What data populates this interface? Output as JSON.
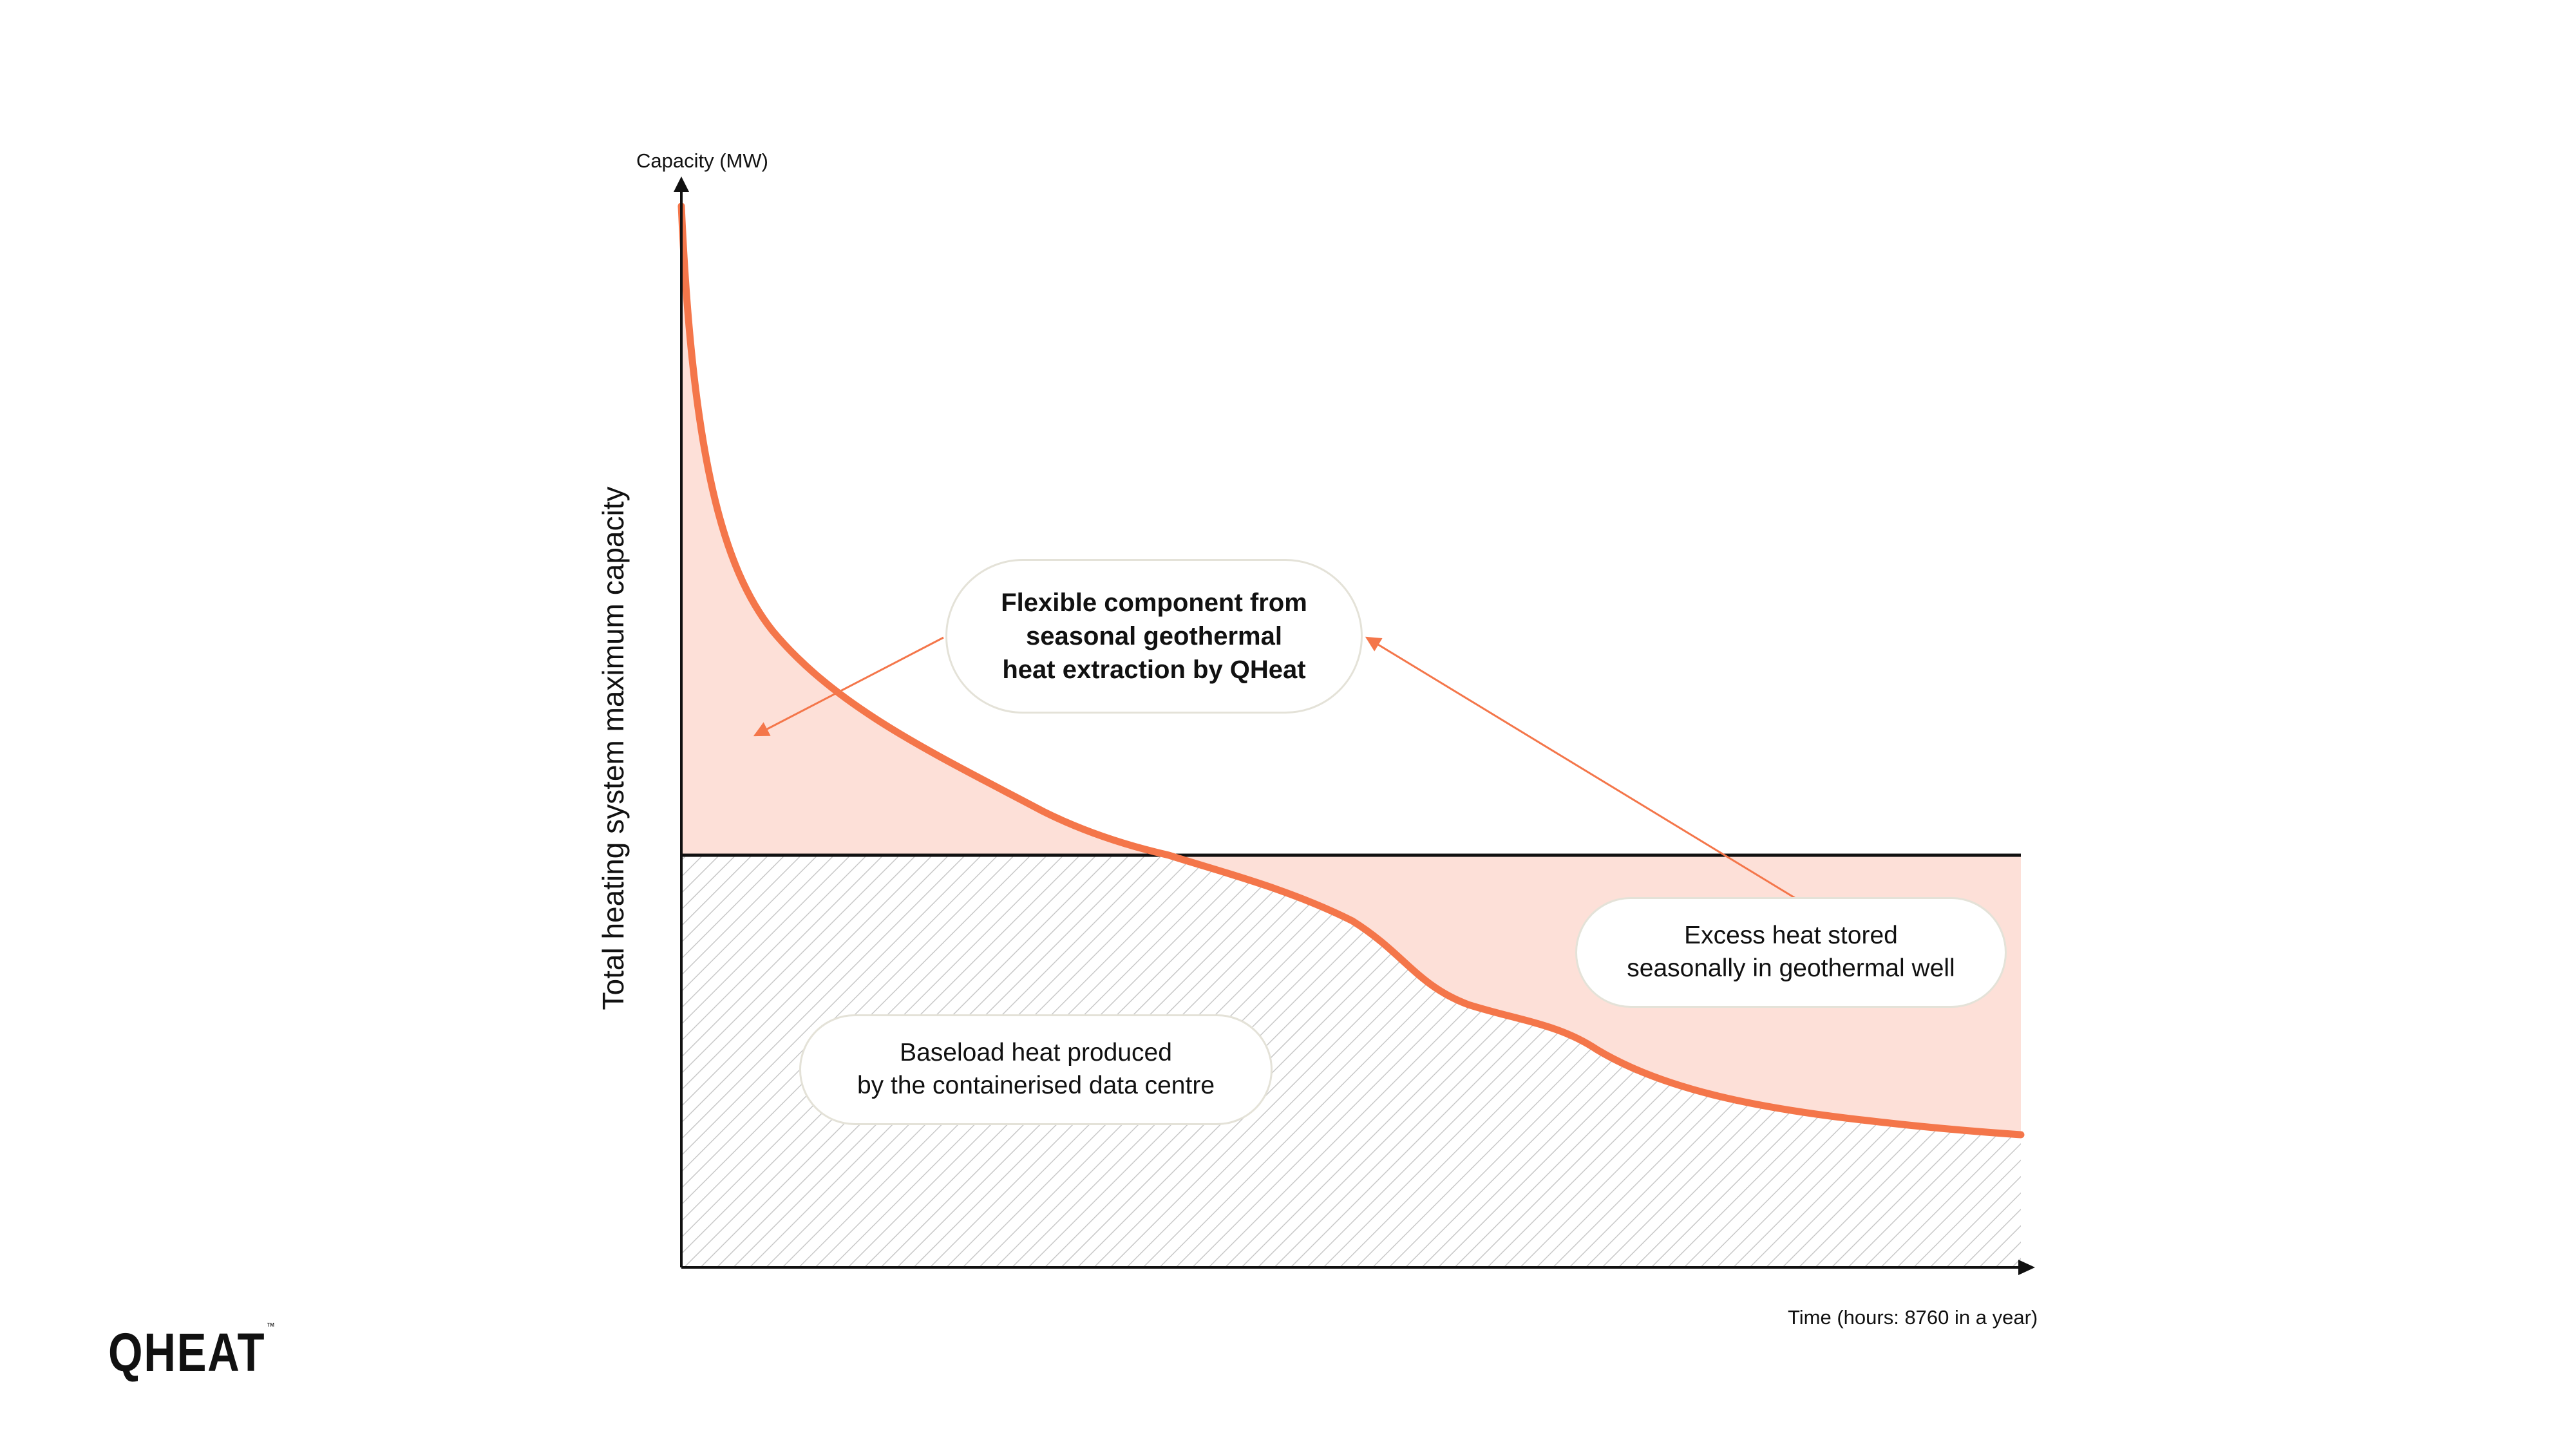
{
  "labels": {
    "y_axis_top": "Capacity (MW)",
    "y_axis_side": "Total heating system maximum capacity",
    "x_axis": "Time (hours: 8760 in a year)"
  },
  "callouts": {
    "flexible": [
      "Flexible component from",
      "seasonal geothermal",
      "heat extraction by QHeat"
    ],
    "excess": [
      "Excess heat stored",
      "seasonally in geothermal well"
    ],
    "baseload": [
      "Baseload heat produced",
      "by the containerised data centre"
    ]
  },
  "logo": {
    "text": "QHEAT",
    "mark": "™"
  },
  "colors": {
    "curve": "#f4764a",
    "fill": "#fde0d8",
    "hatch": "#c8c8c8",
    "axis": "#111111",
    "callout_border": "#e4e2d8"
  }
}
